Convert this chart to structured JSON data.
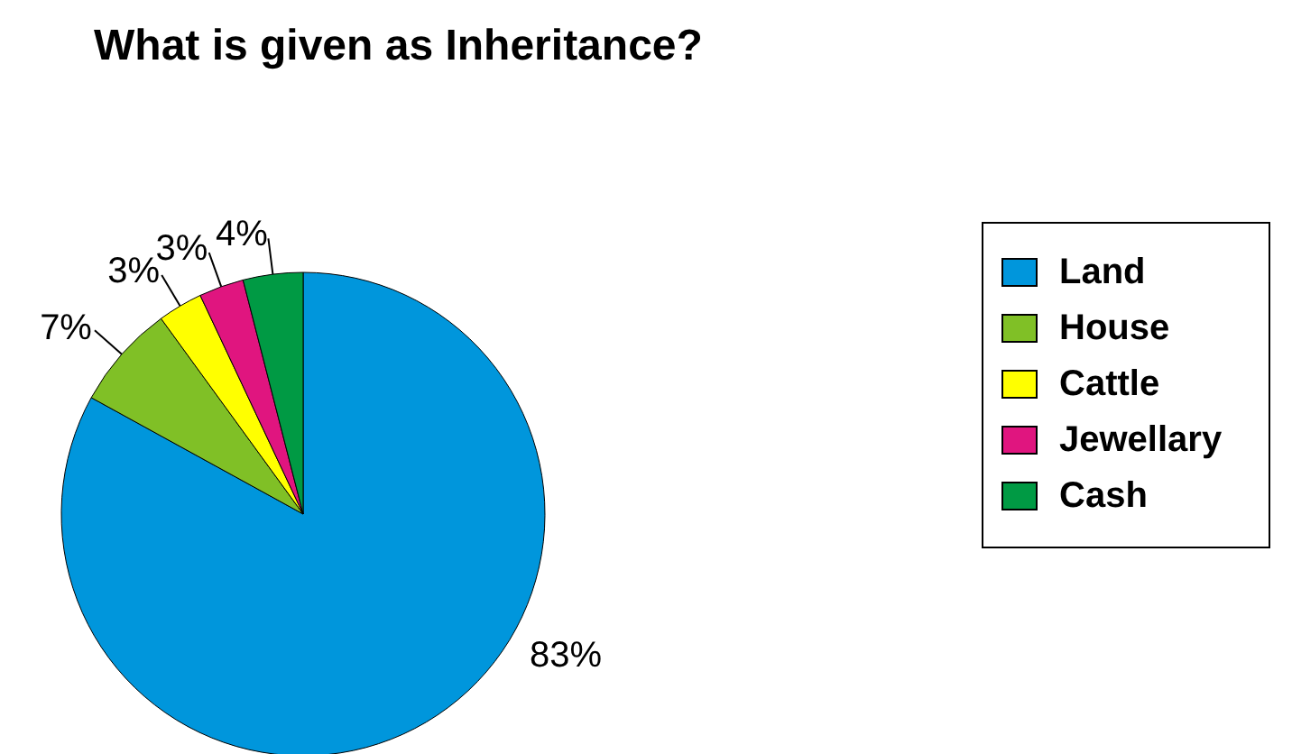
{
  "chart_data": {
    "type": "pie",
    "title": "What is given as Inheritance?",
    "categories": [
      "Land",
      "House",
      "Cattle",
      "Jewellary",
      "Cash"
    ],
    "values": [
      83,
      7,
      3,
      3,
      4
    ],
    "value_labels": [
      "83%",
      "7%",
      "3%",
      "3%",
      "4%"
    ],
    "colors": [
      "#0096dc",
      "#80c026",
      "#ffff00",
      "#e0157f",
      "#009a44"
    ],
    "legend": "right"
  }
}
